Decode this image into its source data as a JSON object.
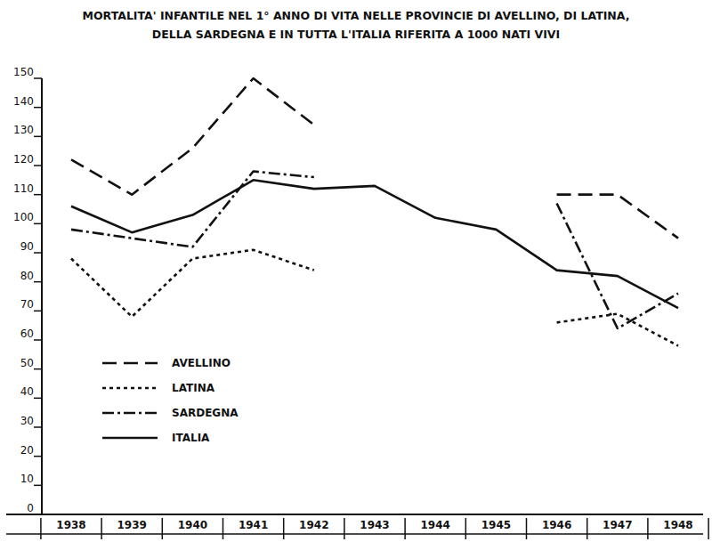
{
  "chart_data": {
    "type": "line",
    "title": "MORTALITA' INFANTILE NEL 1° ANNO DI VITA NELLE PROVINCIE DI AVELLINO, DI LATINA,\nDELLA SARDEGNA E IN TUTTA L'ITALIA RIFERITA A 1000 NATI VIVI",
    "categories": [
      "1938",
      "1939",
      "1940",
      "1941",
      "1942",
      "1943",
      "1944",
      "1945",
      "1946",
      "1947",
      "1948"
    ],
    "series": [
      {
        "name": "AVELLINO",
        "color": "#111111",
        "line_style": "dashed",
        "values": [
          122,
          110,
          126,
          150,
          134,
          null,
          null,
          null,
          110,
          110,
          95
        ]
      },
      {
        "name": "LATINA",
        "color": "#111111",
        "line_style": "dotted",
        "values": [
          88,
          68,
          88,
          91,
          84,
          null,
          null,
          null,
          66,
          69,
          58
        ]
      },
      {
        "name": "SARDEGNA",
        "color": "#111111",
        "line_style": "dashdot",
        "values": [
          98,
          95,
          92,
          118,
          116,
          null,
          null,
          null,
          107,
          64,
          76
        ]
      },
      {
        "name": "ITALIA",
        "color": "#111111",
        "line_style": "solid",
        "values": [
          106,
          97,
          103,
          115,
          112,
          113,
          102,
          98,
          84,
          82,
          71
        ]
      }
    ],
    "ylim": [
      0,
      150
    ],
    "yticks": [
      0,
      10,
      20,
      30,
      40,
      50,
      60,
      70,
      80,
      90,
      100,
      110,
      120,
      130,
      140,
      150
    ],
    "grid": false,
    "legend": "left"
  }
}
